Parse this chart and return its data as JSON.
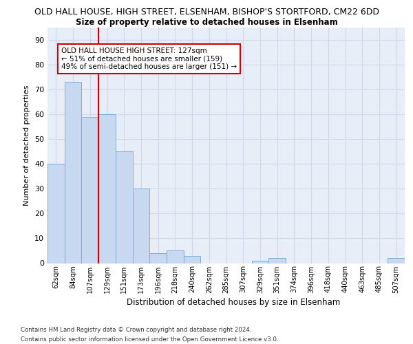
{
  "title1": "OLD HALL HOUSE, HIGH STREET, ELSENHAM, BISHOP'S STORTFORD, CM22 6DD",
  "title2": "Size of property relative to detached houses in Elsenham",
  "xlabel": "Distribution of detached houses by size in Elsenham",
  "ylabel": "Number of detached properties",
  "categories": [
    "62sqm",
    "84sqm",
    "107sqm",
    "129sqm",
    "151sqm",
    "173sqm",
    "196sqm",
    "218sqm",
    "240sqm",
    "262sqm",
    "285sqm",
    "307sqm",
    "329sqm",
    "351sqm",
    "374sqm",
    "396sqm",
    "418sqm",
    "440sqm",
    "463sqm",
    "485sqm",
    "507sqm"
  ],
  "bar_values": [
    40,
    73,
    59,
    60,
    45,
    30,
    4,
    5,
    3,
    0,
    0,
    0,
    1,
    2,
    0,
    0,
    0,
    0,
    0,
    0,
    2
  ],
  "bar_color": "#c6d9f0",
  "bar_edge_color": "#7bafd4",
  "vline_color": "#cc0000",
  "annotation_text": "OLD HALL HOUSE HIGH STREET: 127sqm\n← 51% of detached houses are smaller (159)\n49% of semi-detached houses are larger (151) →",
  "annotation_box_color": "#ffffff",
  "annotation_box_edge": "#cc0000",
  "ylim": [
    0,
    95
  ],
  "yticks": [
    0,
    10,
    20,
    30,
    40,
    50,
    60,
    70,
    80,
    90
  ],
  "grid_color": "#d0d8e8",
  "footnote": "Contains HM Land Registry data © Crown copyright and database right 2024.\nContains public sector information licensed under the Open Government Licence v3.0.",
  "bg_color": "#e8eef8"
}
